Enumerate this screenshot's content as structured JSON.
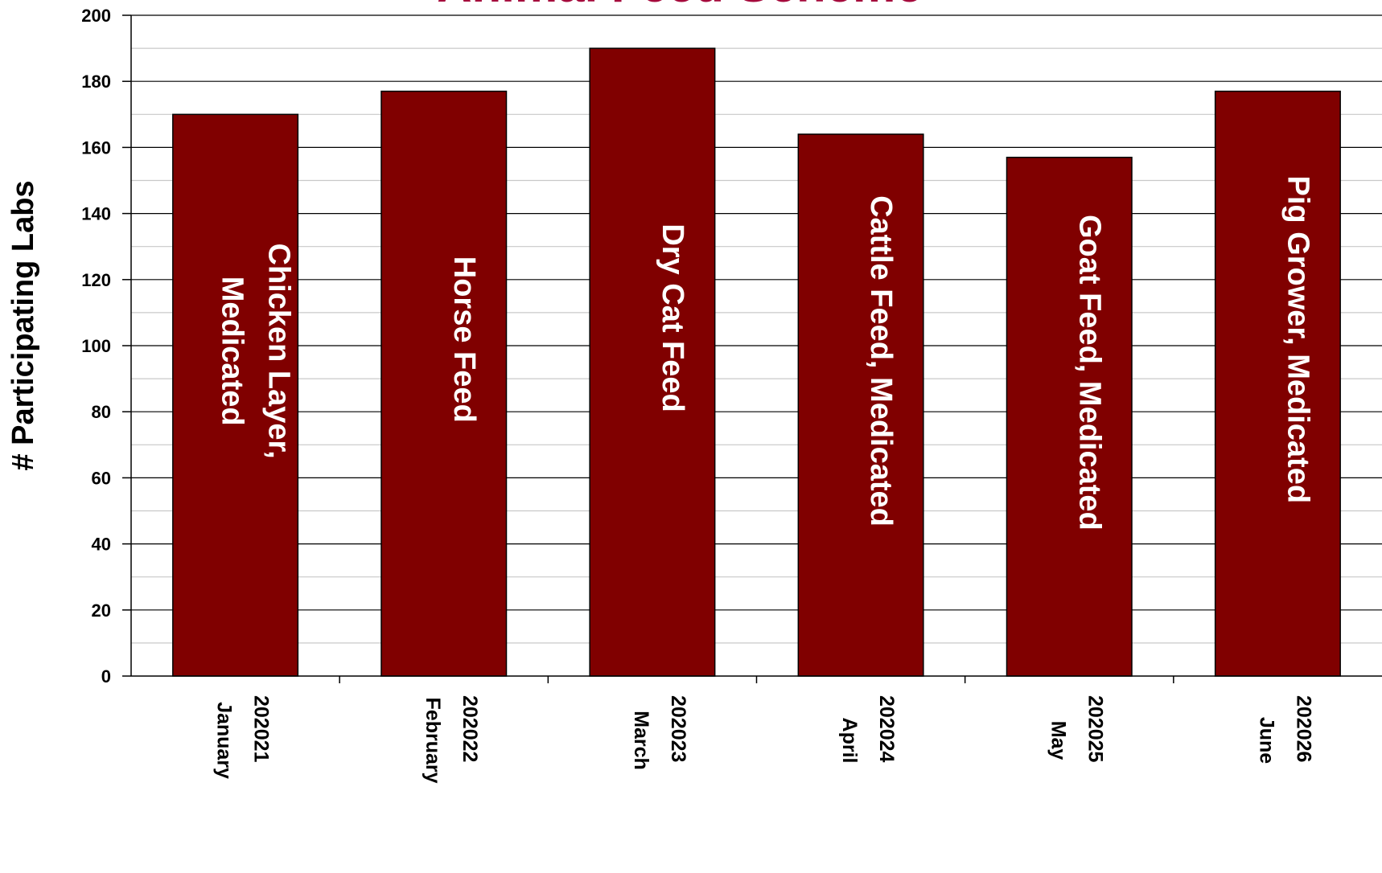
{
  "chart_data": {
    "type": "bar",
    "title": "Animal Feed Scheme",
    "ylabel": "# Participating Labs",
    "xlabel": "",
    "ylim": [
      0,
      200
    ],
    "y_major_ticks": [
      0,
      20,
      40,
      60,
      80,
      100,
      120,
      140,
      160,
      180,
      200
    ],
    "y_minor_step": 10,
    "grid": true,
    "categories": [
      {
        "code": "202021",
        "month": "January"
      },
      {
        "code": "202022",
        "month": "February"
      },
      {
        "code": "202023",
        "month": "March"
      },
      {
        "code": "202024",
        "month": "April"
      },
      {
        "code": "202025",
        "month": "May"
      },
      {
        "code": "202026",
        "month": "June"
      }
    ],
    "values": [
      170,
      177,
      190,
      164,
      157,
      177
    ],
    "bar_labels": [
      [
        "Chicken Layer,",
        "Medicated"
      ],
      [
        "Horse Feed"
      ],
      [
        "Dry Cat Feed"
      ],
      [
        "Cattle Feed, Medicated"
      ],
      [
        "Goat Feed, Medicated"
      ],
      [
        "Pig Grower, Medicated"
      ]
    ],
    "colors": {
      "bar": "#800000",
      "title": "#a50a3c",
      "grid": "#000000",
      "minor_grid": "#c8c8c8"
    }
  }
}
